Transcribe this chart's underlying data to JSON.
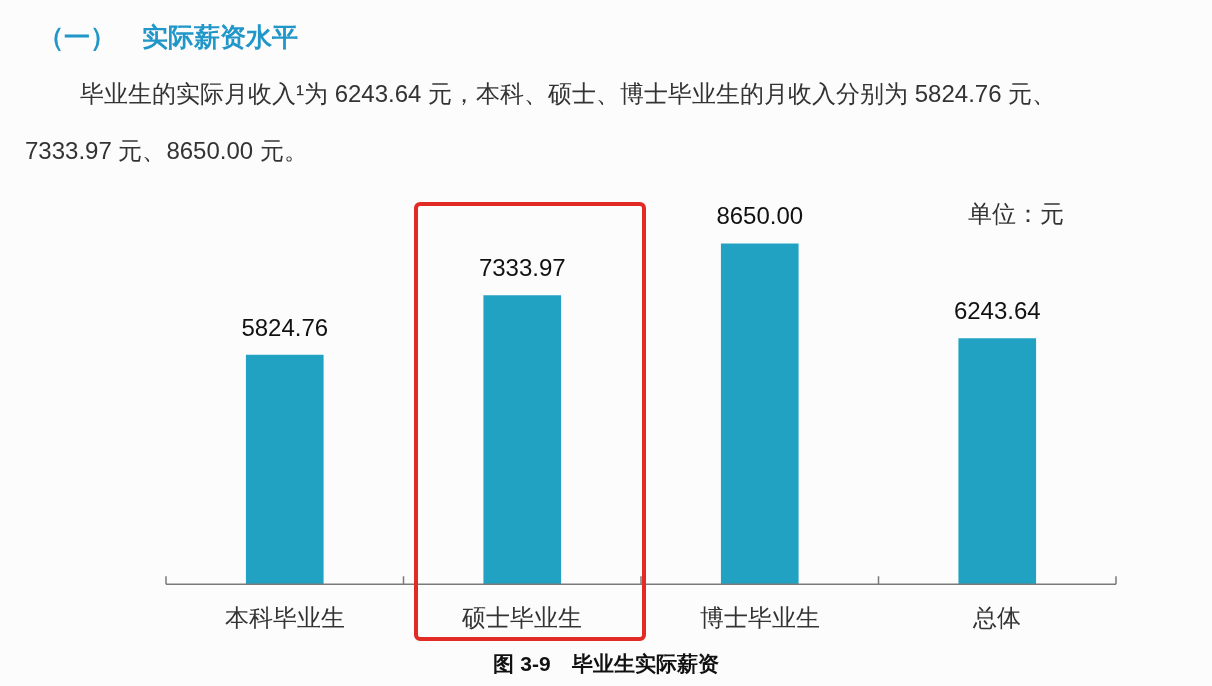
{
  "chart_data": {
    "type": "bar",
    "title": "（一）　实际薪资水平",
    "subtitle": "毕业生的实际月收入¹为 6243.64 元，本科、硕士、博士毕业生的月收入分别为 5824.76 元、7333.97 元、8650.00 元。",
    "annotations": [
      "单位：元",
      "图 3-9　毕业生实际薪资"
    ],
    "categories": [
      "本科毕业生",
      "硕士毕业生",
      "博士毕业生",
      "总体"
    ],
    "values": [
      5824.76,
      7333.97,
      8650,
      6243.64
    ],
    "value_labels": [
      "5824.76",
      "7333.97",
      "8650.00",
      "6243.64"
    ],
    "color": "#22a2c3",
    "tick_labels": "x"
  }
}
